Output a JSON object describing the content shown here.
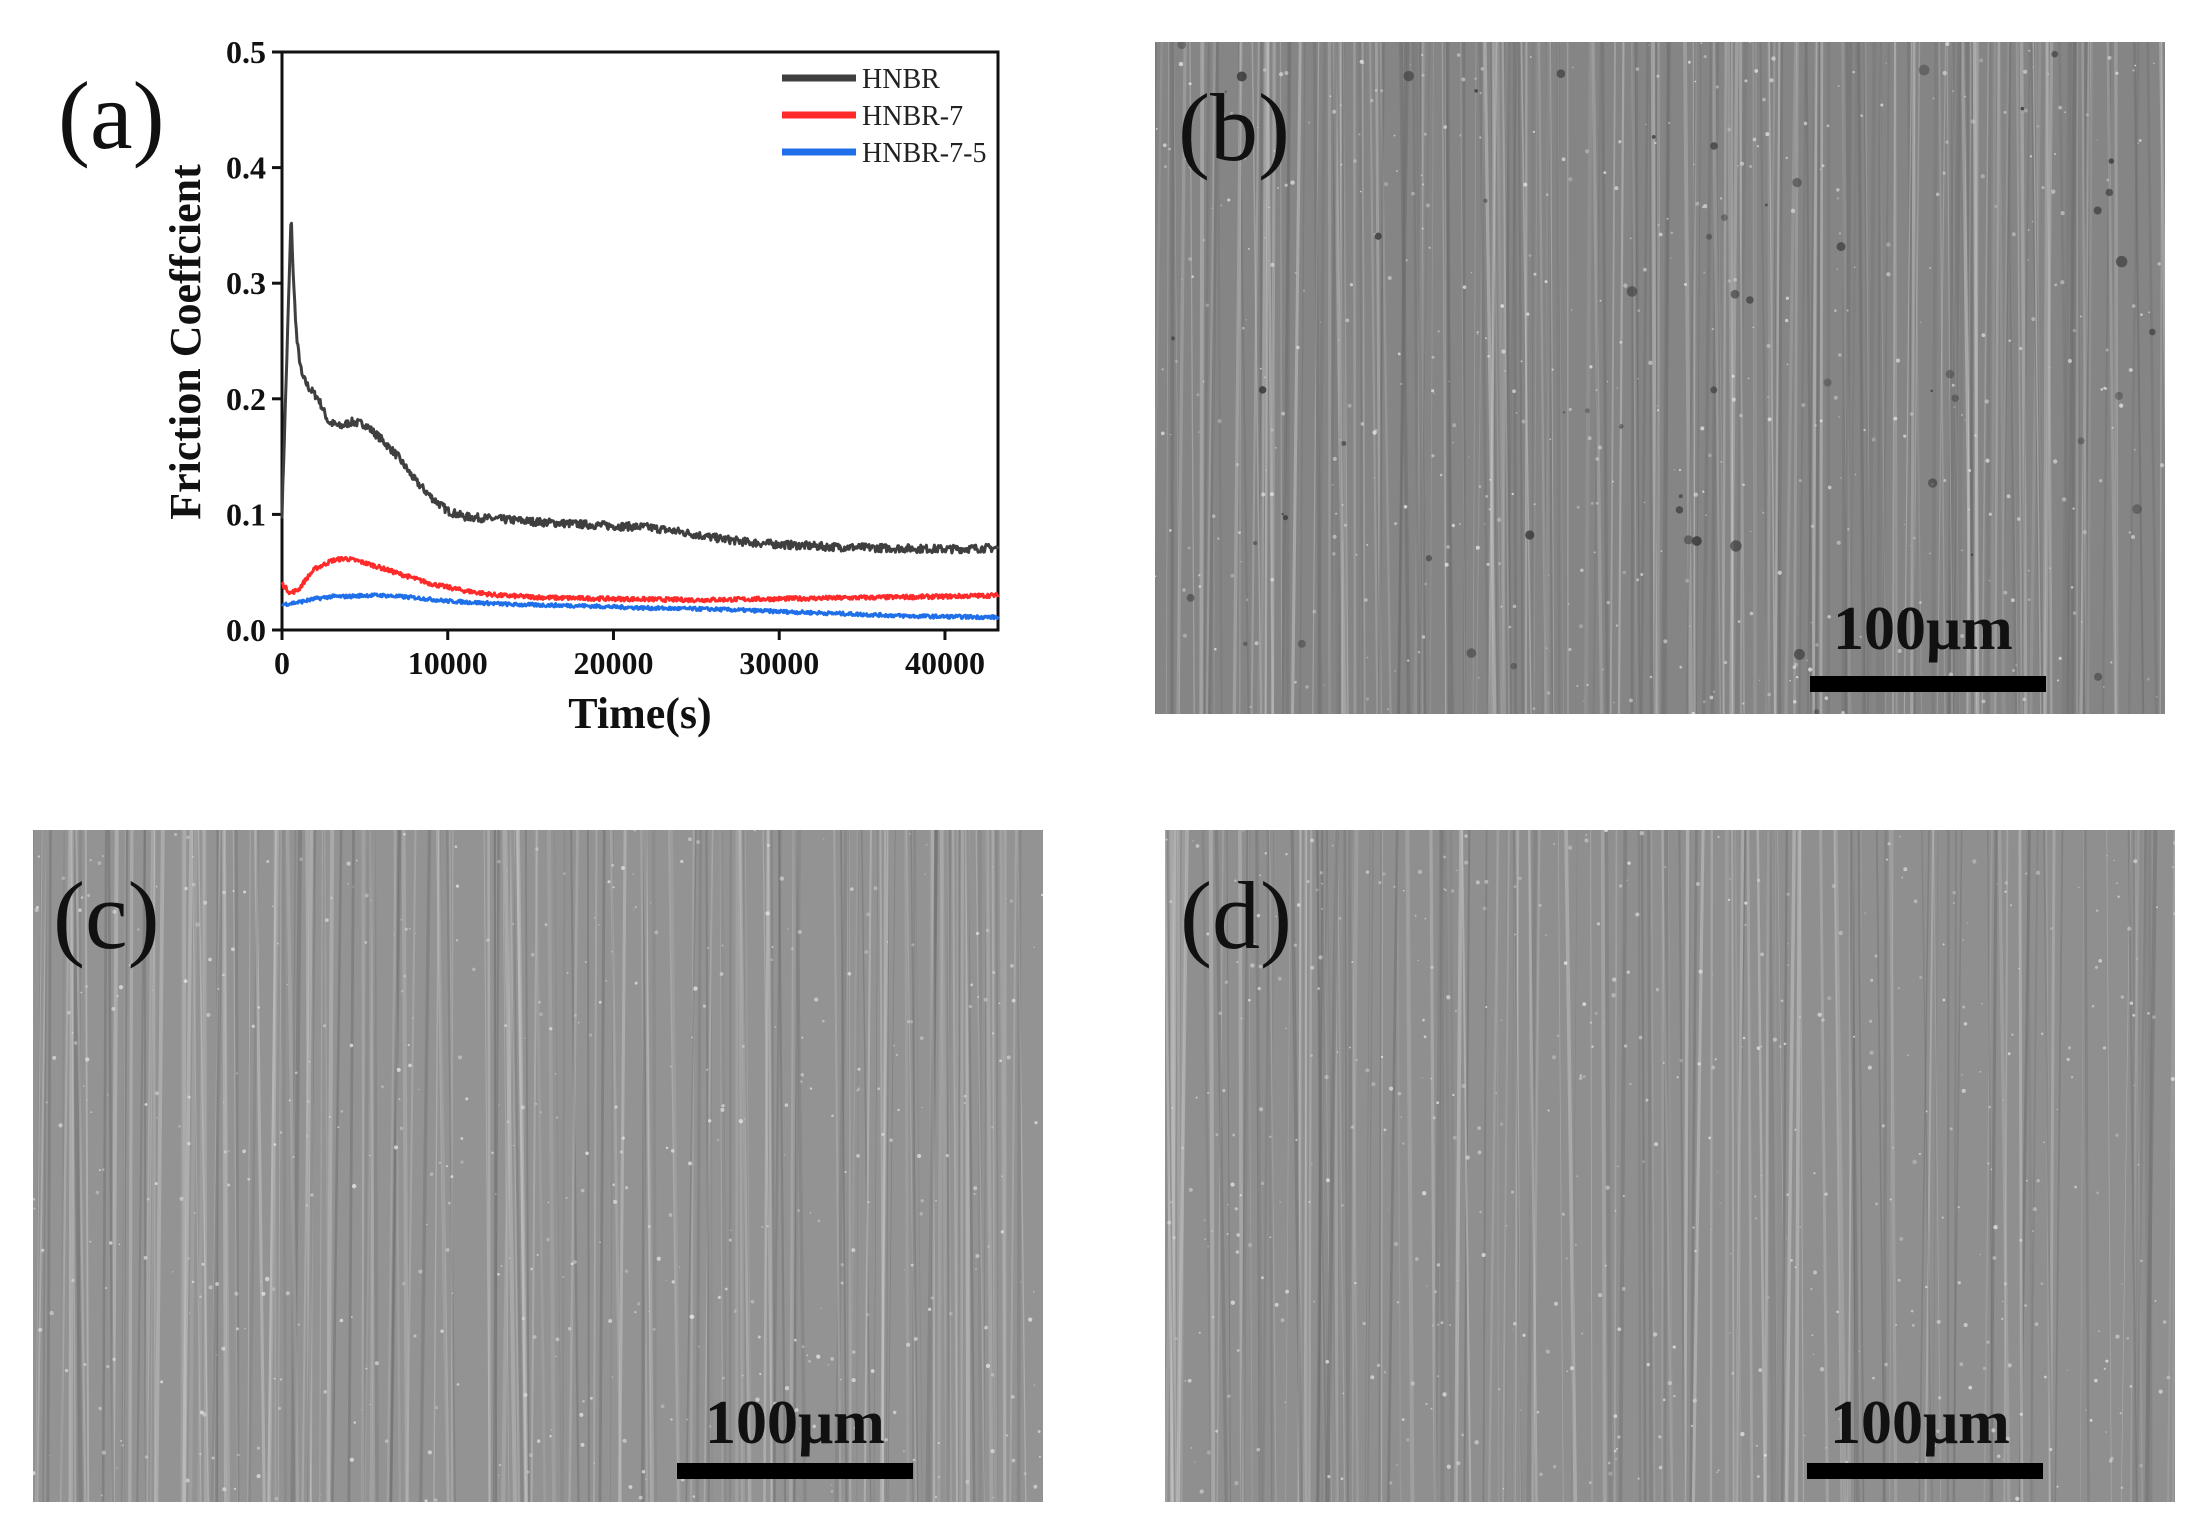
{
  "figure": {
    "panels": {
      "a": {
        "label": "(a)"
      },
      "b": {
        "label": "(b)",
        "scale_bar": "100μm"
      },
      "c": {
        "label": "(c)",
        "scale_bar": "100μm"
      },
      "d": {
        "label": "(d)",
        "scale_bar": "100μm"
      }
    }
  },
  "colors": {
    "HNBR": "#3f3f3f",
    "HNBR-7": "#ff2a2a",
    "HNBR-7-5": "#1f6fe8"
  },
  "chart_data": {
    "type": "line",
    "xlabel": "Time(s)",
    "ylabel": "Friction Coeffcient",
    "xlim": [
      0,
      43200
    ],
    "ylim": [
      0,
      0.5
    ],
    "xticks": [
      0,
      10000,
      20000,
      30000,
      40000
    ],
    "yticks": [
      0.0,
      0.1,
      0.2,
      0.3,
      0.4,
      0.5
    ],
    "ytick_labels": [
      "0.0",
      "0.1",
      "0.2",
      "0.3",
      "0.4",
      "0.5"
    ],
    "legend_position": "top-right",
    "series": [
      {
        "name": "HNBR",
        "x": [
          0,
          300,
          550,
          700,
          900,
          1200,
          1600,
          2200,
          2800,
          3500,
          4200,
          5000,
          6000,
          7000,
          8000,
          9000,
          10000,
          11000,
          13000,
          16000,
          20000,
          22000,
          24000,
          26000,
          28000,
          30000,
          33000,
          36000,
          40000,
          43200
        ],
        "y": [
          0.1,
          0.24,
          0.36,
          0.3,
          0.25,
          0.22,
          0.21,
          0.2,
          0.18,
          0.176,
          0.18,
          0.178,
          0.165,
          0.15,
          0.13,
          0.115,
          0.103,
          0.098,
          0.096,
          0.093,
          0.09,
          0.089,
          0.085,
          0.08,
          0.076,
          0.074,
          0.072,
          0.071,
          0.07,
          0.071
        ]
      },
      {
        "name": "HNBR-7",
        "x": [
          0,
          500,
          1000,
          1500,
          2000,
          3000,
          3800,
          4500,
          5500,
          7000,
          9000,
          11000,
          13000,
          16000,
          20000,
          25000,
          30000,
          35000,
          40000,
          43200
        ],
        "y": [
          0.04,
          0.032,
          0.035,
          0.045,
          0.053,
          0.06,
          0.062,
          0.06,
          0.056,
          0.049,
          0.04,
          0.034,
          0.03,
          0.028,
          0.027,
          0.026,
          0.027,
          0.028,
          0.029,
          0.03
        ]
      },
      {
        "name": "HNBR-7-5",
        "x": [
          0,
          1000,
          2000,
          3000,
          4000,
          5000,
          6000,
          8000,
          10000,
          14000,
          18000,
          22000,
          26000,
          30000,
          34000,
          38000,
          43200
        ],
        "y": [
          0.022,
          0.024,
          0.027,
          0.029,
          0.029,
          0.03,
          0.03,
          0.028,
          0.025,
          0.022,
          0.021,
          0.019,
          0.018,
          0.016,
          0.014,
          0.012,
          0.011
        ]
      }
    ]
  }
}
